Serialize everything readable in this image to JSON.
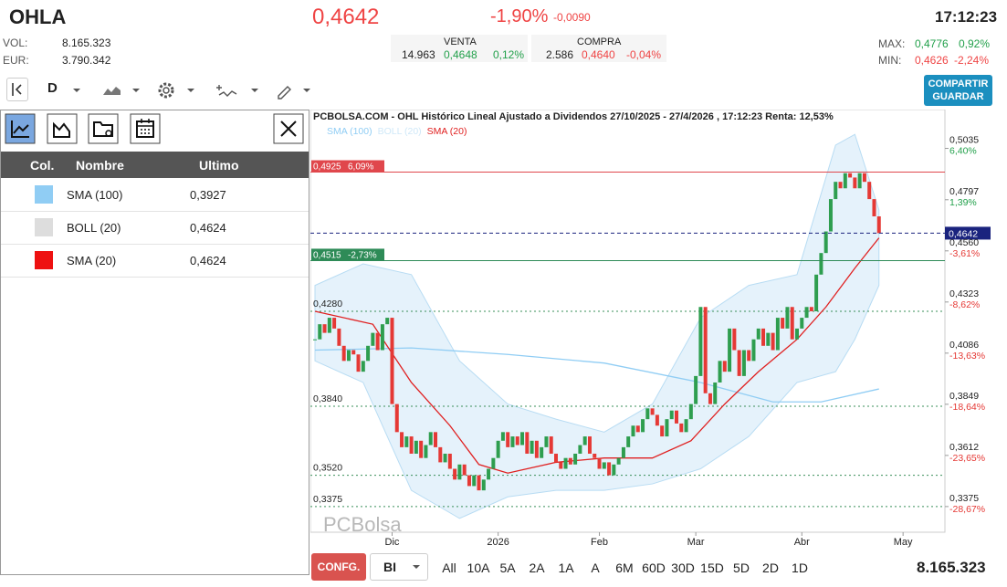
{
  "header": {
    "ticker": "OHLA",
    "price": "0,4642",
    "change_pct": "-1,90%",
    "change_abs": "-0,0090",
    "time": "17:12:23"
  },
  "stats": {
    "vol_label": "VOL:",
    "vol": "8.165.323",
    "eur_label": "EUR:",
    "eur": "3.790.342"
  },
  "quotes": {
    "venta": {
      "label": "VENTA",
      "qty": "14.963",
      "price": "0,4648",
      "pct": "0,12%"
    },
    "compra": {
      "label": "COMPRA",
      "qty": "2.586",
      "price": "0,4640",
      "pct": "-0,04%"
    }
  },
  "range": {
    "max_label": "MAX:",
    "max": "0,4776",
    "max_pct": "0,92%",
    "min_label": "MIN:",
    "min": "0,4626",
    "min_pct": "-2,24%"
  },
  "toolbar": {
    "period": "D",
    "share": "COMPARTIR",
    "save": "GUARDAR"
  },
  "indicators": {
    "headers": [
      "Col.",
      "Nombre",
      "Ultimo"
    ],
    "rows": [
      {
        "name": "SMA (100)",
        "value": "0,3927",
        "color": "#90cdf4"
      },
      {
        "name": "BOLL (20)",
        "value": "0,4624",
        "color": "#dddddd"
      },
      {
        "name": "SMA (20)",
        "value": "0,4624",
        "color": "#ee1111"
      }
    ]
  },
  "chart": {
    "type": "candlestick",
    "title": "PCBOLSA.COM - OHL Histórico Lineal Ajustado a Dividendos 27/10/2025 - 27/4/2026 , 17:12:23 Renta: 12,53%",
    "up_color": "#2e9e4f",
    "down_color": "#e53935",
    "closes": [
      0.415,
      0.422,
      0.418,
      0.425,
      0.42,
      0.412,
      0.405,
      0.41,
      0.408,
      0.4,
      0.405,
      0.412,
      0.418,
      0.41,
      0.422,
      0.425,
      0.385,
      0.372,
      0.365,
      0.37,
      0.362,
      0.368,
      0.36,
      0.366,
      0.372,
      0.365,
      0.358,
      0.362,
      0.355,
      0.35,
      0.357,
      0.352,
      0.347,
      0.352,
      0.345,
      0.35,
      0.355,
      0.36,
      0.368,
      0.372,
      0.365,
      0.37,
      0.366,
      0.372,
      0.362,
      0.368,
      0.36,
      0.365,
      0.37,
      0.362,
      0.358,
      0.355,
      0.36,
      0.357,
      0.362,
      0.366,
      0.37,
      0.362,
      0.36,
      0.355,
      0.358,
      0.352,
      0.357,
      0.36,
      0.365,
      0.37,
      0.375,
      0.372,
      0.378,
      0.383,
      0.38,
      0.375,
      0.37,
      0.378,
      0.382,
      0.376,
      0.372,
      0.378,
      0.385,
      0.398,
      0.43,
      0.39,
      0.385,
      0.395,
      0.405,
      0.4,
      0.42,
      0.41,
      0.398,
      0.41,
      0.405,
      0.415,
      0.42,
      0.412,
      0.418,
      0.41,
      0.425,
      0.42,
      0.43,
      0.415,
      0.42,
      0.425,
      0.43,
      0.428,
      0.445,
      0.455,
      0.465,
      0.48,
      0.488,
      0.485,
      0.492,
      0.49,
      0.485,
      0.492,
      0.488,
      0.48,
      0.472,
      0.4642
    ],
    "x_labels": [
      {
        "label": "Dic",
        "index": 16
      },
      {
        "label": "2026",
        "index": 38
      },
      {
        "label": "Feb",
        "index": 59
      },
      {
        "label": "Mar",
        "index": 79
      },
      {
        "label": "Abr",
        "index": 101
      },
      {
        "label": "May",
        "index": 122
      }
    ],
    "ylim": [
      0.3256,
      0.5215
    ],
    "yticks": [
      {
        "value": 0.5035,
        "label": "0,5035",
        "pct": "6,40%"
      },
      {
        "value": 0.4797,
        "label": "0,4797",
        "pct": "1,39%"
      },
      {
        "value": 0.456,
        "label": "0,4560",
        "pct": "-3,61%"
      },
      {
        "value": 0.4323,
        "label": "0,4323",
        "pct": "-8,62%"
      },
      {
        "value": 0.4086,
        "label": "0,4086",
        "pct": "-13,63%"
      },
      {
        "value": 0.3849,
        "label": "0,3849",
        "pct": "-18,64%"
      },
      {
        "value": 0.3612,
        "label": "0,3612",
        "pct": "-23,65%"
      },
      {
        "value": 0.3375,
        "label": "0,3375",
        "pct": "-28,67%"
      }
    ],
    "levels": [
      {
        "value": 0.428,
        "label": "0,4280"
      },
      {
        "value": 0.384,
        "label": "0,3840"
      },
      {
        "value": 0.352,
        "label": "0,3520"
      },
      {
        "value": 0.3375,
        "label": "0,3375"
      }
    ],
    "max_line": {
      "value": 0.4925,
      "label": "0,4925",
      "pct": "6,09%"
    },
    "min_line": {
      "value": 0.4515,
      "label": "0,4515",
      "pct": "-2,73%"
    },
    "last": {
      "value": 0.4642,
      "label": "0,4642"
    },
    "lines": [
      {
        "name": "SMA (100)",
        "color": "#90cdf4",
        "x": [
          0,
          20,
          40,
          60,
          80,
          95,
          105,
          117
        ],
        "values": [
          0.41,
          0.411,
          0.408,
          0.404,
          0.395,
          0.386,
          0.386,
          0.392
        ]
      },
      {
        "name": "BOLL (20)",
        "color": "#cfe8f8",
        "x": [
          0,
          10,
          20,
          30,
          40,
          50,
          60,
          70,
          80,
          90,
          100,
          108,
          112,
          117
        ],
        "upper": [
          0.44,
          0.45,
          0.445,
          0.405,
          0.385,
          0.378,
          0.372,
          0.385,
          0.425,
          0.44,
          0.445,
          0.505,
          0.51,
          0.475
        ],
        "lower": [
          0.405,
          0.395,
          0.345,
          0.332,
          0.342,
          0.345,
          0.345,
          0.348,
          0.355,
          0.37,
          0.395,
          0.4,
          0.415,
          0.44
        ]
      },
      {
        "name": "SMA (20)",
        "color": "#e02020",
        "x": [
          0,
          12,
          20,
          28,
          34,
          40,
          50,
          60,
          70,
          78,
          85,
          92,
          100,
          106,
          112,
          117
        ],
        "values": [
          0.428,
          0.422,
          0.395,
          0.375,
          0.357,
          0.353,
          0.358,
          0.36,
          0.36,
          0.368,
          0.385,
          0.4,
          0.415,
          0.43,
          0.448,
          0.462
        ]
      }
    ],
    "watermark": "PCBolsa"
  },
  "footer": {
    "config": "CONFG.",
    "mode": "BI",
    "ranges": [
      "All",
      "10A",
      "5A",
      "2A",
      "1A",
      "A",
      "6M",
      "60D",
      "30D",
      "15D",
      "5D",
      "2D",
      "1D"
    ],
    "volume": "8.165.323"
  }
}
